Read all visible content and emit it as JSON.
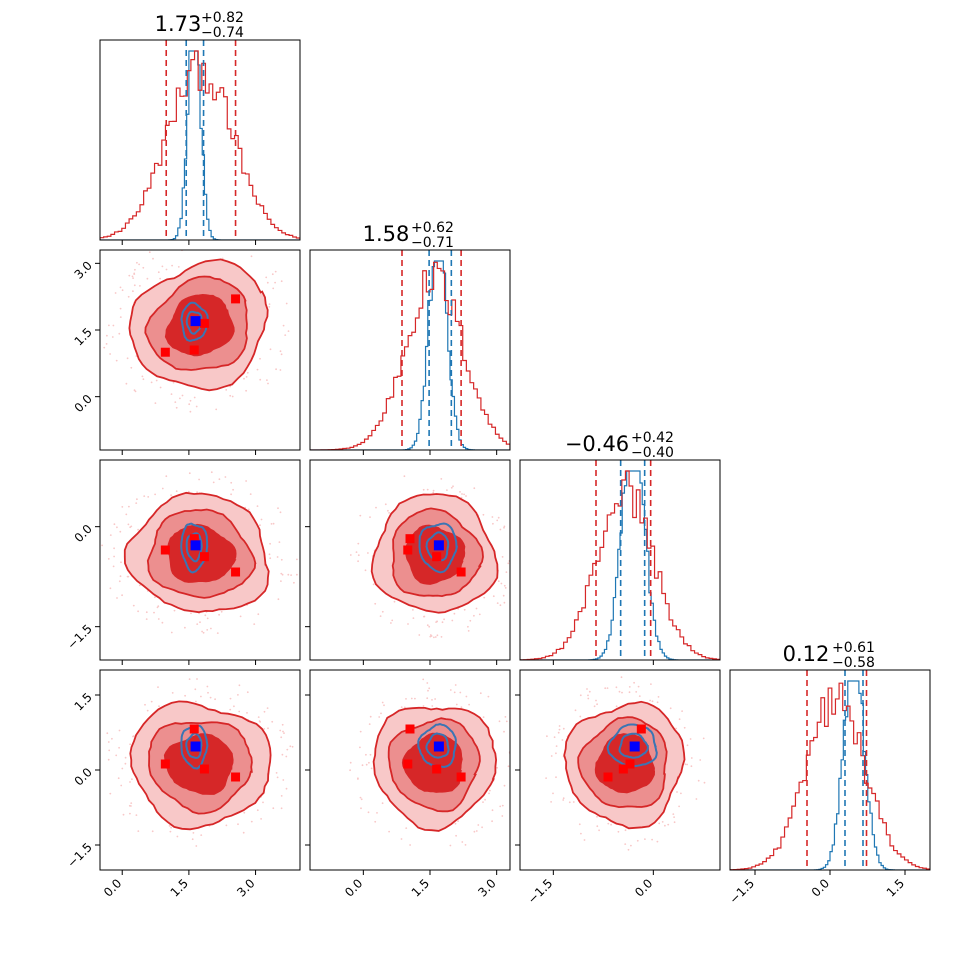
{
  "figure": {
    "type": "corner_plot",
    "parameter_count": 4
  },
  "colors": {
    "red": "#d62728",
    "red_light": "#ec8f8f",
    "red_mid": "#e34d4d",
    "red_pale": "#f8c8c8",
    "blue_line": "#1f77b4",
    "blue_contour": "#3a75b4",
    "marker_red": "#ff0000",
    "marker_blue": "#0000ff"
  },
  "titles": [
    {
      "value": "1.73",
      "plus": "+0.82",
      "minus": "−0.74"
    },
    {
      "value": "1.58",
      "plus": "+0.62",
      "minus": "−0.71"
    },
    {
      "value": "−0.46",
      "plus": "+0.42",
      "minus": "−0.40"
    },
    {
      "value": "0.12",
      "plus": "+0.61",
      "minus": "−0.58"
    }
  ],
  "axes": {
    "x_ticks": [
      {
        "values": [
          0.0,
          1.5,
          3.0
        ],
        "labels": [
          "0.0",
          "1.5",
          "3.0"
        ]
      },
      {
        "values": [
          0.0,
          1.5,
          3.0
        ],
        "labels": [
          "0.0",
          "1.5",
          "3.0"
        ]
      },
      {
        "values": [
          -1.5,
          0.0
        ],
        "labels": [
          "−1.5",
          "0.0"
        ]
      },
      {
        "values": [
          -1.5,
          0.0,
          1.5
        ],
        "labels": [
          "−1.5",
          "0.0",
          "1.5"
        ]
      }
    ],
    "y_ticks": [
      null,
      {
        "values": [
          0.0,
          1.5,
          3.0
        ],
        "labels": [
          "0.0",
          "1.5",
          "3.0"
        ]
      },
      {
        "values": [
          -1.5,
          0.0
        ],
        "labels": [
          "−1.5",
          "0.0"
        ]
      },
      {
        "values": [
          -1.5,
          0.0,
          1.5
        ],
        "labels": [
          "−1.5",
          "0.0",
          "1.5"
        ]
      }
    ]
  },
  "chart_data": {
    "type": "corner",
    "ranges": [
      [
        -0.5,
        4.0
      ],
      [
        -1.2,
        3.3
      ],
      [
        -2.0,
        1.0
      ],
      [
        -2.0,
        2.0
      ]
    ],
    "red_posterior": {
      "mean": [
        1.75,
        1.6,
        -0.42,
        0.12
      ],
      "std": [
        0.75,
        0.65,
        0.42,
        0.58
      ],
      "median": [
        1.73,
        1.58,
        -0.46,
        0.12
      ],
      "quantile_lines": [
        [
          0.99,
          2.55
        ],
        [
          0.87,
          2.2
        ],
        [
          -0.86,
          -0.04
        ],
        [
          -0.46,
          0.73
        ]
      ]
    },
    "blue_posterior": {
      "mean": [
        1.62,
        1.68,
        -0.3,
        0.48
      ],
      "std": [
        0.14,
        0.2,
        0.17,
        0.2
      ],
      "quantile_lines": [
        [
          1.44,
          1.83
        ],
        [
          1.48,
          1.98
        ],
        [
          -0.49,
          -0.13
        ],
        [
          0.3,
          0.66
        ]
      ]
    },
    "red_markers": [
      [
        0.97,
        1.0,
        -0.35,
        0.12
      ],
      [
        1.62,
        1.05,
        -0.18,
        0.82
      ],
      [
        1.85,
        1.65,
        -0.45,
        0.02
      ],
      [
        2.55,
        2.2,
        -0.68,
        -0.14
      ]
    ],
    "blue_marker": [
      1.65,
      1.7,
      -0.28,
      0.47
    ]
  }
}
